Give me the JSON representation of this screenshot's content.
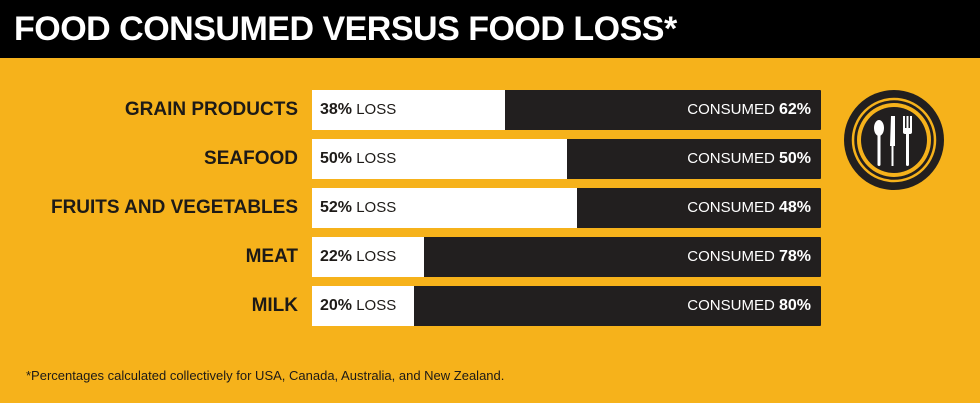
{
  "header": {
    "title": "FOOD CONSUMED VERSUS FOOD LOSS*"
  },
  "chart_data": {
    "type": "bar",
    "orientation": "horizontal",
    "stacked": true,
    "title": "FOOD CONSUMED VERSUS FOOD LOSS*",
    "categories": [
      "GRAIN PRODUCTS",
      "SEAFOOD",
      "FRUITS AND VEGETABLES",
      "MEAT",
      "MILK"
    ],
    "series": [
      {
        "name": "LOSS",
        "values": [
          38,
          50,
          52,
          22,
          20
        ],
        "labels": [
          "38%",
          "50%",
          "52%",
          "22%",
          "20%"
        ],
        "color": "#ffffff"
      },
      {
        "name": "CONSUMED",
        "values": [
          62,
          50,
          48,
          78,
          80
        ],
        "labels": [
          "62%",
          "50%",
          "48%",
          "78%",
          "80%"
        ],
        "color": "#221f1f"
      }
    ],
    "xlim": [
      0,
      100
    ],
    "grid": false
  },
  "icon": {
    "name": "utensils-icon"
  },
  "footnote": "*Percentages calculated collectively for USA, Canada, Australia, and New Zealand.",
  "colors": {
    "background": "#f6b21b",
    "title_bar": "#000000",
    "loss": "#ffffff",
    "consumed": "#221f1f"
  }
}
